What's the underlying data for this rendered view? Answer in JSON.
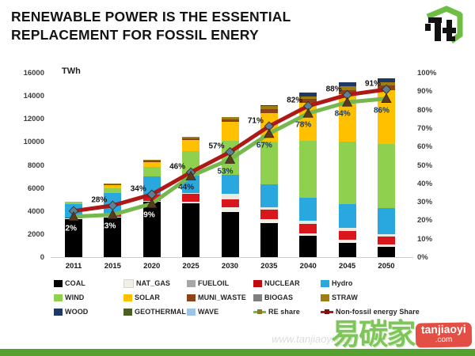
{
  "title": {
    "line1": "RENEWABLE POWER IS THE ESSENTIAL",
    "line2": "REPLACEMENT FOR FOSSIL ENERY"
  },
  "axes": {
    "left_unit": "TWh",
    "left_ticks": [
      "16000",
      "14000",
      "12000",
      "10000",
      "8000",
      "6000",
      "4000",
      "2000",
      "0"
    ],
    "right_ticks": [
      "100%",
      "90%",
      "80%",
      "70%",
      "60%",
      "50%",
      "40%",
      "30%",
      "20%",
      "10%",
      "0%"
    ]
  },
  "chart_data": {
    "type": "bar",
    "subtype": "stacked bars (TWh, left axis) with two percentage share lines (right axis)",
    "categories": [
      "2011",
      "2015",
      "2020",
      "2025",
      "2030",
      "2035",
      "2040",
      "2045",
      "2050"
    ],
    "ylabel": "TWh",
    "ylim_left": [
      0,
      16000
    ],
    "ylim_right_percent": [
      0,
      100
    ],
    "grid": false,
    "legend_position": "bottom",
    "series": [
      {
        "name": "COAL",
        "color": "#000000",
        "values": [
          3300,
          3450,
          4800,
          4650,
          3900,
          2950,
          1850,
          1230,
          890
        ]
      },
      {
        "name": "NAT_GAS",
        "color": "#f1efe6",
        "values": [
          60,
          80,
          100,
          150,
          400,
          340,
          230,
          270,
          200
        ]
      },
      {
        "name": "NUCLEAR",
        "color": "#d8161c",
        "values": [
          100,
          150,
          550,
          680,
          680,
          820,
          820,
          750,
          680
        ]
      },
      {
        "name": "FUELOIL",
        "color": "#e9e9e2",
        "values": [
          0,
          0,
          0,
          100,
          480,
          200,
          230,
          270,
          200
        ]
      },
      {
        "name": "Hydro",
        "color": "#29a8e0",
        "values": [
          1150,
          1900,
          1550,
          1500,
          1710,
          1980,
          2050,
          2050,
          2260
        ]
      },
      {
        "name": "WIND",
        "color": "#8fd04e",
        "values": [
          180,
          400,
          820,
          2100,
          2900,
          3760,
          4920,
          5470,
          5600
        ]
      },
      {
        "name": "SOLAR",
        "color": "#ffc000",
        "values": [
          0,
          250,
          400,
          1000,
          1700,
          2460,
          3280,
          4100,
          4650
        ]
      },
      {
        "name": "MUNI_WASTE",
        "color": "#8c4318",
        "values": [
          0,
          100,
          150,
          150,
          200,
          340,
          340,
          340,
          410
        ]
      },
      {
        "name": "BIOGAS",
        "color": "#7f7f7f",
        "values": [
          0,
          0,
          0,
          0,
          0,
          0,
          0,
          0,
          0
        ]
      },
      {
        "name": "STRAW",
        "color": "#a07d10",
        "values": [
          0,
          80,
          100,
          100,
          200,
          240,
          240,
          340,
          310
        ]
      },
      {
        "name": "WOOD",
        "color": "#1f3864",
        "values": [
          0,
          0,
          0,
          0,
          0,
          100,
          300,
          340,
          340
        ]
      },
      {
        "name": "GEOTHERMAL",
        "color": "#4a5d23",
        "values": [
          0,
          0,
          0,
          0,
          0,
          0,
          0,
          0,
          0
        ]
      },
      {
        "name": "WAVE",
        "color": "#9dc3e6",
        "values": [
          0,
          0,
          0,
          0,
          0,
          0,
          0,
          0,
          0
        ]
      }
    ],
    "lines": [
      {
        "name": "Non-fossil energy Share",
        "color": "#ae1917",
        "marker": "diamond",
        "marker_color": "#5f7d95",
        "percent": [
          25,
          28,
          34,
          46,
          57,
          71,
          82,
          88,
          91
        ],
        "labels": [
          "",
          "28%",
          "34%",
          "46%",
          "57%",
          "71%",
          "82%",
          "88%",
          "91%"
        ],
        "label_colors": [
          "",
          "#111111",
          "#111111",
          "#111111",
          "#111111",
          "#111111",
          "#111111",
          "#111111",
          "#111111"
        ]
      },
      {
        "name": "RE share",
        "color": "#76b84e",
        "marker": "triangle",
        "marker_color": "#5b3a1e",
        "percent": [
          22,
          23,
          29,
          44,
          53,
          67,
          78,
          84,
          86
        ],
        "labels": [
          "22%",
          "23%",
          "29%",
          "44%",
          "53%",
          "67%",
          "78%",
          "84%",
          "86%"
        ],
        "label_colors": [
          "#ffffff",
          "#ffffff",
          "#ffffff",
          "#20262c",
          "#17375e",
          "#17375e",
          "#17375e",
          "#17375e",
          "#17375e"
        ]
      }
    ]
  },
  "legend": {
    "items": [
      {
        "label": "COAL",
        "type": "box",
        "color": "#000000"
      },
      {
        "label": "NAT_GAS",
        "type": "box",
        "color": "#f1efe6"
      },
      {
        "label": "FUELOIL",
        "type": "box",
        "color": "#a6a6a6"
      },
      {
        "label": "NUCLEAR",
        "type": "box",
        "color": "#c00b10"
      },
      {
        "label": "Hydro",
        "type": "box",
        "color": "#29a8e0"
      },
      {
        "label": "WIND",
        "type": "box",
        "color": "#8fd04e"
      },
      {
        "label": "SOLAR",
        "type": "box",
        "color": "#ffc000"
      },
      {
        "label": "MUNI_WASTE",
        "type": "box",
        "color": "#8c4318"
      },
      {
        "label": "BIOGAS",
        "type": "box",
        "color": "#7f7f7f"
      },
      {
        "label": "STRAW",
        "type": "box",
        "color": "#a07d10"
      },
      {
        "label": "WOOD",
        "type": "box",
        "color": "#1f3864"
      },
      {
        "label": "GEOTHERMAL",
        "type": "box",
        "color": "#4a5d23"
      },
      {
        "label": "WAVE",
        "type": "box",
        "color": "#9dc3e6"
      },
      {
        "label": "RE share",
        "type": "line",
        "color": "#76b84e",
        "marker_color": "#8a7a20"
      },
      {
        "label": "Non-fossil energy Share",
        "type": "line",
        "color": "#ae1917",
        "marker_color": "#7a1410"
      }
    ]
  },
  "watermark": {
    "cn_text": "易碳家",
    "badge_line1": "tanjiaoyi",
    "badge_line2": ".com",
    "faint_url": "www.tanjiaoyi.com"
  },
  "colors": {
    "footer_bar": "#55a02e",
    "logo_green": "#6fbe44"
  }
}
